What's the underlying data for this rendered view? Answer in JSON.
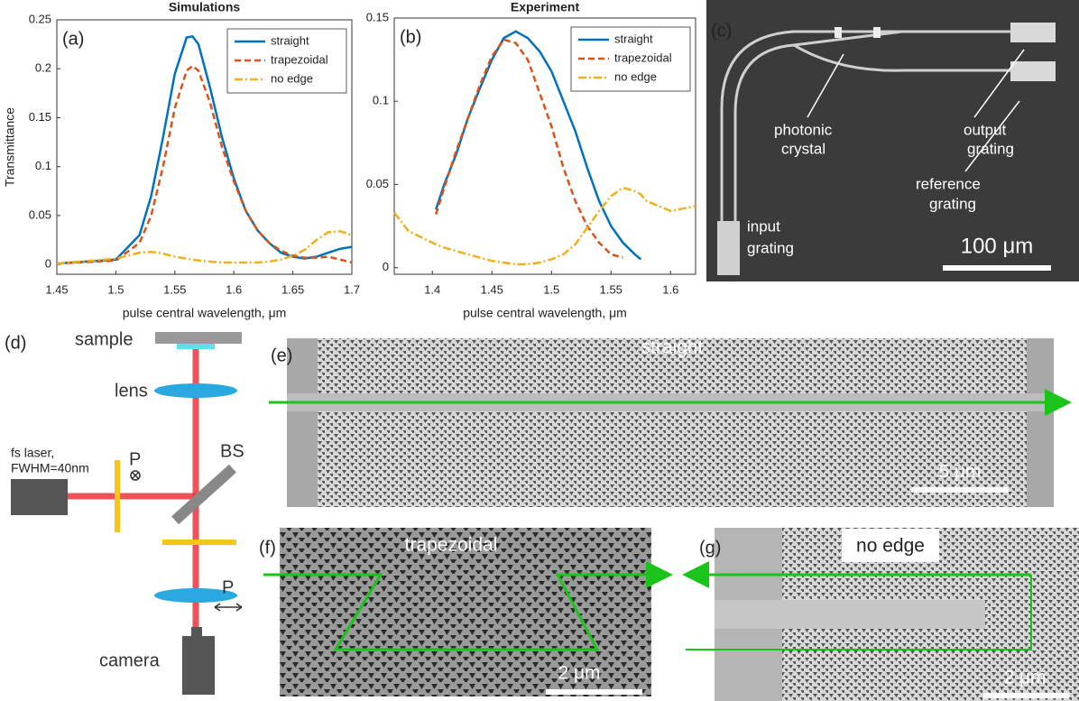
{
  "chart_data": [
    {
      "type": "line",
      "title": "Simulations",
      "panel_label": "(a)",
      "xlabel": "pulse central wavelength, μm",
      "ylabel": "Transmittance",
      "x": [
        1.45,
        1.5,
        1.52,
        1.53,
        1.54,
        1.55,
        1.56,
        1.565,
        1.57,
        1.58,
        1.59,
        1.6,
        1.61,
        1.62,
        1.63,
        1.64,
        1.65,
        1.66,
        1.67,
        1.68,
        1.69,
        1.7
      ],
      "series": [
        {
          "name": "straight",
          "color": "#0072bd",
          "dash": "solid",
          "values": [
            0.001,
            0.005,
            0.03,
            0.07,
            0.13,
            0.195,
            0.232,
            0.233,
            0.225,
            0.18,
            0.13,
            0.088,
            0.055,
            0.035,
            0.022,
            0.012,
            0.008,
            0.006,
            0.008,
            0.012,
            0.016,
            0.018
          ]
        },
        {
          "name": "trapezoidal",
          "color": "#d95319",
          "dash": "dashed",
          "values": [
            0.001,
            0.004,
            0.022,
            0.05,
            0.1,
            0.16,
            0.198,
            0.203,
            0.198,
            0.165,
            0.12,
            0.085,
            0.055,
            0.035,
            0.022,
            0.014,
            0.009,
            0.007,
            0.007,
            0.008,
            0.005,
            0.002
          ]
        },
        {
          "name": "no edge",
          "color": "#edb120",
          "dash": "dashdot",
          "values": [
            0.001,
            0.006,
            0.012,
            0.013,
            0.011,
            0.008,
            0.006,
            0.005,
            0.004,
            0.003,
            0.002,
            0.002,
            0.002,
            0.002,
            0.003,
            0.005,
            0.009,
            0.015,
            0.025,
            0.033,
            0.034,
            0.03
          ]
        }
      ],
      "xlim": [
        1.45,
        1.7
      ],
      "xticks": [
        1.45,
        1.5,
        1.55,
        1.6,
        1.65,
        1.7
      ],
      "ylim": [
        -0.01,
        0.25
      ],
      "yticks": [
        0,
        0.05,
        0.1,
        0.15,
        0.2,
        0.25
      ],
      "legend": "upper right"
    },
    {
      "type": "line",
      "title": "Experiment",
      "panel_label": "(b)",
      "xlabel": "pulse central wavelength, μm",
      "x": [
        1.368,
        1.38,
        1.4,
        1.403,
        1.41,
        1.42,
        1.43,
        1.44,
        1.45,
        1.46,
        1.47,
        1.48,
        1.49,
        1.5,
        1.51,
        1.52,
        1.53,
        1.54,
        1.55,
        1.56,
        1.57,
        1.575,
        1.58,
        1.6,
        1.621
      ],
      "series": [
        {
          "name": "straight",
          "color": "#0072bd",
          "dash": "solid",
          "values": [
            null,
            null,
            null,
            0.035,
            0.05,
            0.068,
            0.09,
            0.108,
            0.125,
            0.138,
            0.142,
            0.138,
            0.13,
            0.118,
            0.1,
            0.082,
            0.06,
            0.04,
            0.025,
            0.015,
            0.008,
            0.005,
            null,
            null,
            null
          ]
        },
        {
          "name": "trapezoidal",
          "color": "#d95319",
          "dash": "dashed",
          "values": [
            null,
            null,
            null,
            0.032,
            0.048,
            0.07,
            0.09,
            0.11,
            0.127,
            0.137,
            0.135,
            0.125,
            0.105,
            0.085,
            0.06,
            0.04,
            0.025,
            0.015,
            0.008,
            0.006,
            null,
            null,
            null,
            null,
            null
          ]
        },
        {
          "name": "no edge",
          "color": "#edb120",
          "dash": "dashdot",
          "values": [
            0.033,
            0.022,
            0.015,
            0.014,
            0.012,
            0.01,
            0.008,
            0.006,
            0.004,
            0.003,
            0.002,
            0.002,
            0.003,
            0.005,
            0.008,
            0.014,
            0.024,
            0.034,
            0.043,
            0.048,
            0.046,
            0.044,
            0.04,
            0.034,
            0.037
          ]
        }
      ],
      "xlim": [
        1.368,
        1.621
      ],
      "xticks": [
        1.4,
        1.45,
        1.5,
        1.55,
        1.6
      ],
      "ylim": [
        -0.004,
        0.15
      ],
      "yticks": [
        0,
        0.05,
        0.1,
        0.15
      ],
      "legend": "upper right"
    }
  ],
  "panels": {
    "c": {
      "label": "(c)",
      "photonic_crystal": [
        "photonic",
        "crystal"
      ],
      "output_grating": [
        "output",
        "grating"
      ],
      "reference_grating": [
        "reference",
        "grating"
      ],
      "input_grating": [
        "input",
        "grating"
      ],
      "scale_bar": "100 μm"
    },
    "d": {
      "label": "(d)",
      "sample": "sample",
      "lens": "lens",
      "laser": [
        "fs laser,",
        "FWHM=40nm"
      ],
      "polarizer_1": "P",
      "beam_splitter": "BS",
      "polarizer_2": "P",
      "camera": "camera"
    },
    "e": {
      "label": "(e)",
      "caption": "straight",
      "scale_bar": "5 μm"
    },
    "f": {
      "label": "(f)",
      "caption": "trapezoidal",
      "scale_bar": "2 μm"
    },
    "g": {
      "label": "(g)",
      "caption": "no edge",
      "scale_bar": "2 μm"
    }
  }
}
